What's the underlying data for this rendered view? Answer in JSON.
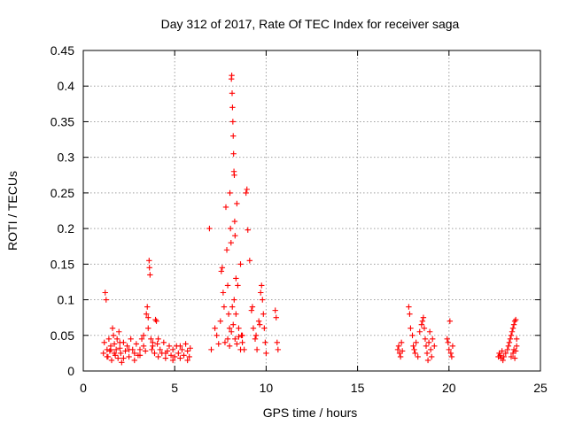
{
  "chart_data": {
    "type": "scatter",
    "title": "Day 312 of 2017, Rate Of TEC Index for receiver saga",
    "xlabel": "GPS time / hours",
    "ylabel": "ROTI / TECUs",
    "xlim": [
      0,
      25
    ],
    "ylim": [
      0,
      0.45
    ],
    "xticks": [
      0,
      5,
      10,
      15,
      20,
      25
    ],
    "xtick_labels": [
      "0",
      "5",
      "10",
      "15",
      "20",
      "25"
    ],
    "yticks": [
      0,
      0.05,
      0.1,
      0.15,
      0.2,
      0.25,
      0.3,
      0.35,
      0.4,
      0.45
    ],
    "ytick_labels": [
      "0",
      "0.05",
      "0.1",
      "0.15",
      "0.2",
      "0.25",
      "0.3",
      "0.35",
      "0.4",
      "0.45"
    ],
    "grid": true,
    "marker": "+",
    "color": "#ff0000",
    "series": [
      {
        "name": "ROTI",
        "points": [
          [
            1.1,
            0.025
          ],
          [
            1.15,
            0.04
          ],
          [
            1.2,
            0.11
          ],
          [
            1.25,
            0.1
          ],
          [
            1.3,
            0.03
          ],
          [
            1.35,
            0.02
          ],
          [
            1.4,
            0.045
          ],
          [
            1.45,
            0.028
          ],
          [
            1.5,
            0.035
          ],
          [
            1.55,
            0.015
          ],
          [
            1.6,
            0.06
          ],
          [
            1.65,
            0.05
          ],
          [
            1.7,
            0.038
          ],
          [
            1.75,
            0.022
          ],
          [
            1.8,
            0.03
          ],
          [
            1.85,
            0.045
          ],
          [
            1.9,
            0.018
          ],
          [
            1.95,
            0.055
          ],
          [
            2.0,
            0.032
          ],
          [
            2.05,
            0.025
          ],
          [
            2.1,
            0.012
          ],
          [
            2.2,
            0.04
          ],
          [
            2.3,
            0.028
          ],
          [
            2.4,
            0.035
          ],
          [
            2.5,
            0.02
          ],
          [
            2.6,
            0.045
          ],
          [
            2.7,
            0.03
          ],
          [
            2.8,
            0.025
          ],
          [
            2.9,
            0.038
          ],
          [
            3.0,
            0.022
          ],
          [
            3.1,
            0.03
          ],
          [
            3.2,
            0.045
          ],
          [
            3.3,
            0.035
          ],
          [
            3.4,
            0.028
          ],
          [
            3.45,
            0.08
          ],
          [
            3.5,
            0.09
          ],
          [
            3.55,
            0.075
          ],
          [
            3.6,
            0.155
          ],
          [
            3.62,
            0.145
          ],
          [
            3.65,
            0.135
          ],
          [
            3.7,
            0.045
          ],
          [
            3.75,
            0.03
          ],
          [
            3.8,
            0.04
          ],
          [
            3.9,
            0.025
          ],
          [
            3.95,
            0.072
          ],
          [
            4.0,
            0.07
          ],
          [
            4.05,
            0.038
          ],
          [
            4.1,
            0.02
          ],
          [
            4.2,
            0.03
          ],
          [
            4.3,
            0.025
          ],
          [
            4.4,
            0.04
          ],
          [
            4.5,
            0.018
          ],
          [
            4.6,
            0.028
          ],
          [
            4.7,
            0.035
          ],
          [
            4.8,
            0.022
          ],
          [
            4.9,
            0.03
          ],
          [
            5.0,
            0.02
          ],
          [
            5.1,
            0.035
          ],
          [
            5.2,
            0.025
          ],
          [
            5.3,
            0.018
          ],
          [
            5.4,
            0.03
          ],
          [
            5.5,
            0.022
          ],
          [
            5.6,
            0.038
          ],
          [
            5.7,
            0.028
          ],
          [
            5.8,
            0.02
          ],
          [
            5.85,
            0.032
          ],
          [
            1.3,
            0.02
          ],
          [
            1.5,
            0.03
          ],
          [
            1.7,
            0.025
          ],
          [
            2.0,
            0.04
          ],
          [
            2.2,
            0.018
          ],
          [
            2.5,
            0.03
          ],
          [
            2.8,
            0.015
          ],
          [
            3.1,
            0.022
          ],
          [
            3.3,
            0.05
          ],
          [
            3.55,
            0.06
          ],
          [
            3.8,
            0.035
          ],
          [
            4.1,
            0.045
          ],
          [
            4.5,
            0.025
          ],
          [
            4.9,
            0.015
          ],
          [
            5.3,
            0.035
          ],
          [
            5.7,
            0.015
          ],
          [
            6.9,
            0.2
          ],
          [
            7.0,
            0.03
          ],
          [
            7.2,
            0.06
          ],
          [
            7.3,
            0.05
          ],
          [
            7.4,
            0.038
          ],
          [
            7.5,
            0.07
          ],
          [
            7.55,
            0.14
          ],
          [
            7.6,
            0.145
          ],
          [
            7.65,
            0.11
          ],
          [
            7.7,
            0.09
          ],
          [
            7.75,
            0.04
          ],
          [
            7.8,
            0.23
          ],
          [
            7.85,
            0.17
          ],
          [
            7.9,
            0.12
          ],
          [
            7.95,
            0.08
          ],
          [
            8.0,
            0.06
          ],
          [
            8.02,
            0.25
          ],
          [
            8.05,
            0.2
          ],
          [
            8.08,
            0.18
          ],
          [
            8.1,
            0.41
          ],
          [
            8.12,
            0.415
          ],
          [
            8.14,
            0.39
          ],
          [
            8.16,
            0.37
          ],
          [
            8.18,
            0.35
          ],
          [
            8.2,
            0.33
          ],
          [
            8.22,
            0.305
          ],
          [
            8.24,
            0.28
          ],
          [
            8.26,
            0.275
          ],
          [
            8.28,
            0.21
          ],
          [
            8.3,
            0.19
          ],
          [
            8.35,
            0.13
          ],
          [
            8.4,
            0.235
          ],
          [
            8.45,
            0.12
          ],
          [
            8.5,
            0.06
          ],
          [
            8.6,
            0.15
          ],
          [
            8.65,
            0.05
          ],
          [
            8.7,
            0.04
          ],
          [
            8.8,
            0.03
          ],
          [
            8.9,
            0.25
          ],
          [
            8.95,
            0.255
          ],
          [
            9.0,
            0.198
          ],
          [
            9.1,
            0.155
          ],
          [
            9.2,
            0.085
          ],
          [
            9.3,
            0.06
          ],
          [
            9.4,
            0.045
          ],
          [
            9.5,
            0.03
          ],
          [
            9.6,
            0.07
          ],
          [
            9.7,
            0.11
          ],
          [
            9.75,
            0.12
          ],
          [
            9.8,
            0.1
          ],
          [
            9.85,
            0.08
          ],
          [
            9.9,
            0.06
          ],
          [
            9.95,
            0.04
          ],
          [
            10.0,
            0.025
          ],
          [
            10.5,
            0.085
          ],
          [
            10.55,
            0.075
          ],
          [
            10.6,
            0.04
          ],
          [
            10.65,
            0.03
          ],
          [
            7.9,
            0.045
          ],
          [
            8.0,
            0.035
          ],
          [
            8.1,
            0.055
          ],
          [
            8.2,
            0.065
          ],
          [
            8.3,
            0.045
          ],
          [
            8.4,
            0.038
          ],
          [
            8.5,
            0.048
          ],
          [
            8.6,
            0.03
          ],
          [
            8.7,
            0.05
          ],
          [
            8.15,
            0.09
          ],
          [
            8.25,
            0.1
          ],
          [
            8.35,
            0.08
          ],
          [
            9.25,
            0.09
          ],
          [
            9.45,
            0.05
          ],
          [
            9.65,
            0.065
          ],
          [
            17.2,
            0.03
          ],
          [
            17.25,
            0.035
          ],
          [
            17.3,
            0.025
          ],
          [
            17.35,
            0.02
          ],
          [
            17.4,
            0.04
          ],
          [
            17.45,
            0.028
          ],
          [
            17.8,
            0.09
          ],
          [
            17.85,
            0.08
          ],
          [
            17.9,
            0.06
          ],
          [
            18.0,
            0.05
          ],
          [
            18.05,
            0.035
          ],
          [
            18.1,
            0.03
          ],
          [
            18.15,
            0.025
          ],
          [
            18.2,
            0.04
          ],
          [
            18.3,
            0.02
          ],
          [
            18.4,
            0.055
          ],
          [
            18.5,
            0.065
          ],
          [
            18.55,
            0.07
          ],
          [
            18.6,
            0.075
          ],
          [
            18.65,
            0.06
          ],
          [
            18.7,
            0.045
          ],
          [
            18.75,
            0.035
          ],
          [
            18.8,
            0.025
          ],
          [
            18.85,
            0.015
          ],
          [
            18.9,
            0.04
          ],
          [
            18.95,
            0.055
          ],
          [
            19.0,
            0.03
          ],
          [
            19.05,
            0.02
          ],
          [
            19.1,
            0.045
          ],
          [
            19.2,
            0.035
          ],
          [
            19.9,
            0.045
          ],
          [
            19.95,
            0.04
          ],
          [
            20.0,
            0.03
          ],
          [
            20.05,
            0.07
          ],
          [
            20.1,
            0.025
          ],
          [
            20.15,
            0.02
          ],
          [
            20.2,
            0.035
          ],
          [
            22.7,
            0.02
          ],
          [
            22.75,
            0.025
          ],
          [
            22.8,
            0.022
          ],
          [
            22.85,
            0.018
          ],
          [
            22.9,
            0.028
          ],
          [
            22.95,
            0.015
          ],
          [
            23.0,
            0.02
          ],
          [
            23.1,
            0.025
          ],
          [
            23.2,
            0.03
          ],
          [
            23.25,
            0.035
          ],
          [
            23.3,
            0.04
          ],
          [
            23.35,
            0.045
          ],
          [
            23.4,
            0.05
          ],
          [
            23.45,
            0.055
          ],
          [
            23.5,
            0.06
          ],
          [
            23.55,
            0.065
          ],
          [
            23.6,
            0.07
          ],
          [
            23.65,
            0.072
          ],
          [
            23.7,
            0.045
          ],
          [
            23.4,
            0.02
          ],
          [
            23.5,
            0.025
          ],
          [
            23.55,
            0.03
          ],
          [
            23.6,
            0.018
          ],
          [
            23.65,
            0.028
          ],
          [
            23.7,
            0.035
          ]
        ]
      }
    ]
  }
}
